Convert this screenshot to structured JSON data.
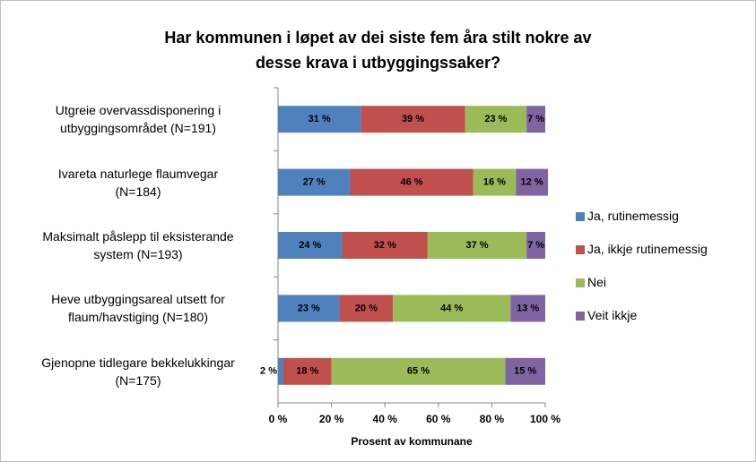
{
  "chart_data": {
    "type": "stacked_bar_horizontal",
    "title": "Har kommunen i løpet av dei siste fem åra stilt nokre av\ndesse krava i utbyggingssaker?",
    "categories": [
      "Utgreie overvassdisponering i\nutbyggingsområdet (N=191)",
      "Ivareta naturlege flaumvegar\n(N=184)",
      "Maksimalt påslepp til eksisterande\nsystem (N=193)",
      "Heve utbyggingsareal utsett for\nflaum/havstiging (N=180)",
      "Gjenopne tidlegare bekkelukkingar\n(N=175)"
    ],
    "series": [
      {
        "name": "Ja, rutinemessig",
        "color": "#4f81bd",
        "values": [
          31,
          27,
          24,
          23,
          2
        ],
        "value_labels": [
          "31 %",
          "27 %",
          "24 %",
          "23 %",
          "2 %"
        ]
      },
      {
        "name": "Ja, ikkje rutinemessig",
        "color": "#c0504d",
        "values": [
          39,
          46,
          32,
          20,
          18
        ],
        "value_labels": [
          "39 %",
          "46 %",
          "32 %",
          "20 %",
          "18 %"
        ]
      },
      {
        "name": "Nei",
        "color": "#9bbb59",
        "values": [
          23,
          16,
          37,
          44,
          65
        ],
        "value_labels": [
          "23 %",
          "16 %",
          "37 %",
          "44 %",
          "65 %"
        ]
      },
      {
        "name": "Veit ikkje",
        "color": "#8064a2",
        "values": [
          7,
          12,
          7,
          13,
          15
        ],
        "value_labels": [
          "7 %",
          "12 %",
          "7 %",
          "13 %",
          "15 %"
        ]
      }
    ],
    "xlabel": "Prosent av kommunane",
    "xlim": [
      0,
      100
    ],
    "xticks": [
      {
        "value": 0,
        "label": "0 %"
      },
      {
        "value": 20,
        "label": "20 %"
      },
      {
        "value": 40,
        "label": "40 %"
      },
      {
        "value": 60,
        "label": "60 %"
      },
      {
        "value": 80,
        "label": "80 %"
      },
      {
        "value": 100,
        "label": "100 %"
      }
    ],
    "legend": "right"
  }
}
